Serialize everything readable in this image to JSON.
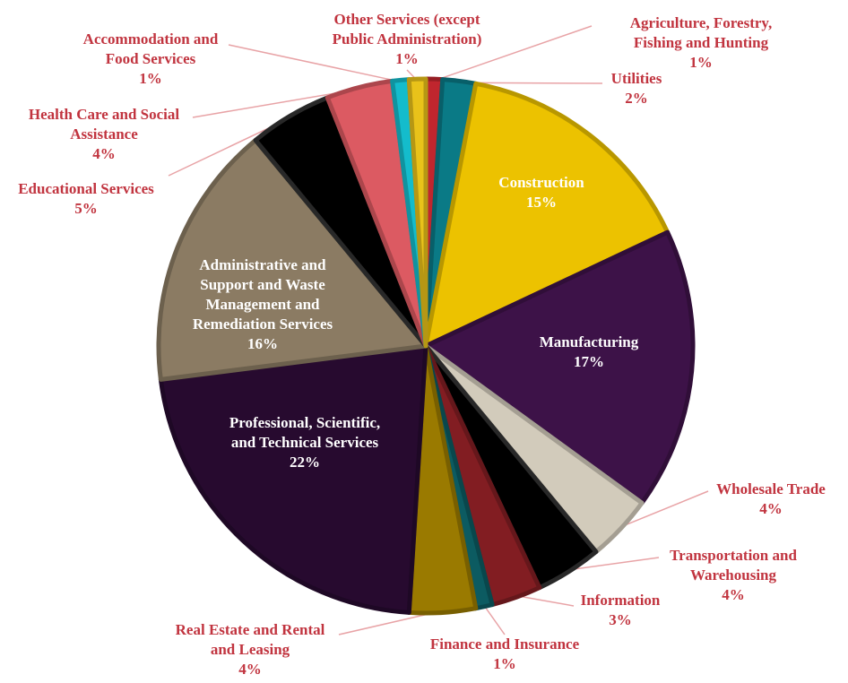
{
  "chart_data": {
    "type": "pie",
    "slices": [
      {
        "key": "agriculture",
        "label_lines": [
          "Agriculture, Forestry,",
          "Fishing and Hunting"
        ],
        "value": 1,
        "pct_label": "1%",
        "color": "#c0262e",
        "inside": false
      },
      {
        "key": "utilities",
        "label_lines": [
          "Utilities"
        ],
        "value": 2,
        "pct_label": "2%",
        "color": "#0a7a86",
        "inside": false
      },
      {
        "key": "construction",
        "label_lines": [
          "Construction"
        ],
        "value": 15,
        "pct_label": "15%",
        "color": "#ecc200",
        "inside": true
      },
      {
        "key": "manufacturing",
        "label_lines": [
          "Manufacturing"
        ],
        "value": 17,
        "pct_label": "17%",
        "color": "#3d1248",
        "inside": true
      },
      {
        "key": "wholesale",
        "label_lines": [
          "Wholesale Trade"
        ],
        "value": 4,
        "pct_label": "4%",
        "color": "#d2cbbb",
        "inside": false
      },
      {
        "key": "transportation",
        "label_lines": [
          "Transportation and",
          "Warehousing"
        ],
        "value": 4,
        "pct_label": "4%",
        "color": "#000000",
        "inside": false
      },
      {
        "key": "information",
        "label_lines": [
          "Information"
        ],
        "value": 3,
        "pct_label": "3%",
        "color": "#821d22",
        "inside": false
      },
      {
        "key": "finance",
        "label_lines": [
          "Finance and Insurance"
        ],
        "value": 1,
        "pct_label": "1%",
        "color": "#0c5b61",
        "inside": false
      },
      {
        "key": "realestate",
        "label_lines": [
          "Real Estate and Rental",
          "and Leasing"
        ],
        "value": 4,
        "pct_label": "4%",
        "color": "#9a7a00",
        "inside": false
      },
      {
        "key": "professional",
        "label_lines": [
          "Professional, Scientific,",
          "and Technical Services"
        ],
        "value": 22,
        "pct_label": "22%",
        "color": "#270a2f",
        "inside": true
      },
      {
        "key": "administrative",
        "label_lines": [
          "Administrative and",
          "Support and Waste",
          "Management and",
          "Remediation Services"
        ],
        "value": 16,
        "pct_label": "16%",
        "color": "#8b7b63",
        "inside": true
      },
      {
        "key": "educational",
        "label_lines": [
          "Educational Services"
        ],
        "value": 5,
        "pct_label": "5%",
        "color": "#000000",
        "inside": false
      },
      {
        "key": "healthcare",
        "label_lines": [
          "Health Care and Social",
          "Assistance"
        ],
        "value": 4,
        "pct_label": "4%",
        "color": "#dc5a62",
        "inside": false
      },
      {
        "key": "accommodation",
        "label_lines": [
          "Accommodation and",
          "Food Services"
        ],
        "value": 1,
        "pct_label": "1%",
        "color": "#14bccc",
        "inside": false
      },
      {
        "key": "otherservices",
        "label_lines": [
          "Other Services (except",
          "Public Administration)"
        ],
        "value": 1,
        "pct_label": "1%",
        "color": "#e9c21a",
        "inside": false
      }
    ]
  }
}
